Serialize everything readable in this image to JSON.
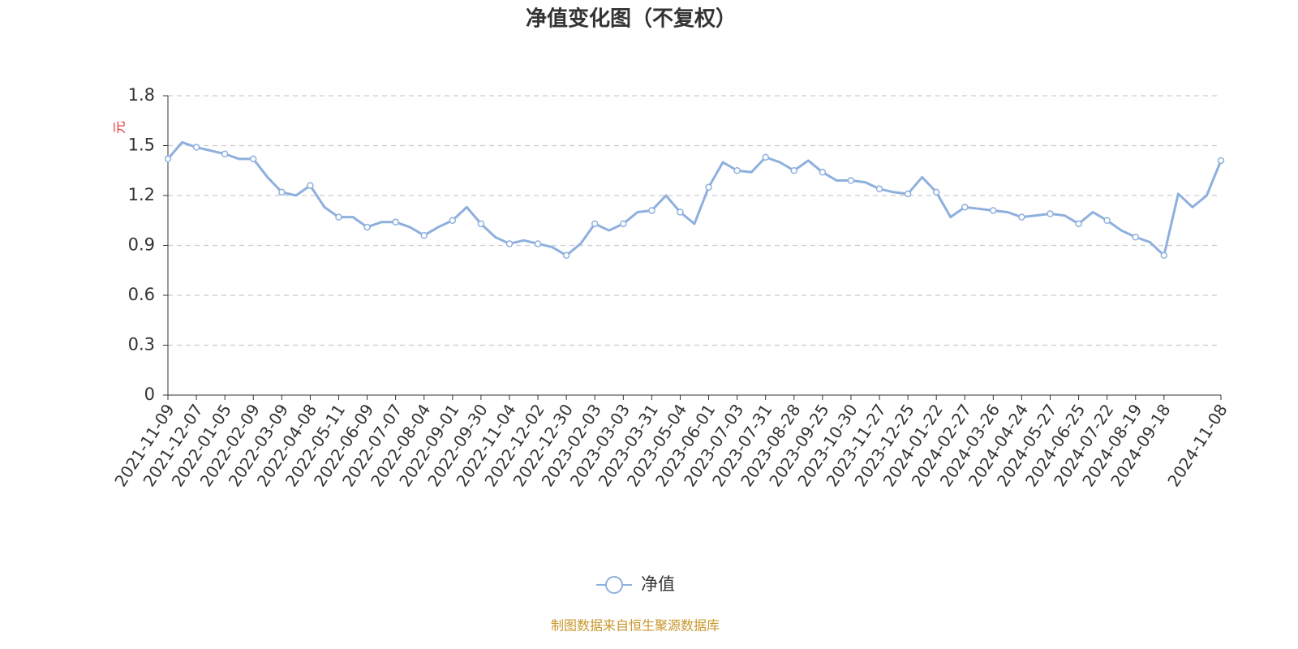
{
  "chart_data": {
    "type": "line",
    "title": "净值变化图（不复权）",
    "y_axis_label": "元",
    "categories": [
      "2021-11-09",
      null,
      "2021-12-07",
      null,
      "2022-01-05",
      null,
      "2022-02-09",
      null,
      "2022-03-09",
      null,
      "2022-04-08",
      null,
      "2022-05-11",
      null,
      "2022-06-09",
      null,
      "2022-07-07",
      null,
      "2022-08-04",
      null,
      "2022-09-01",
      null,
      "2022-09-30",
      null,
      "2022-11-04",
      null,
      "2022-12-02",
      null,
      "2022-12-30",
      null,
      "2023-02-03",
      null,
      "2023-03-03",
      null,
      "2023-03-31",
      null,
      "2023-05-04",
      null,
      "2023-06-01",
      null,
      "2023-07-03",
      null,
      "2023-07-31",
      null,
      "2023-08-28",
      null,
      "2023-09-25",
      null,
      "2023-10-30",
      null,
      "2023-11-27",
      null,
      "2023-12-25",
      null,
      "2024-01-22",
      null,
      "2024-02-27",
      null,
      "2024-03-26",
      null,
      "2024-04-24",
      null,
      "2024-05-27",
      null,
      "2024-06-25",
      null,
      "2024-07-22",
      null,
      "2024-08-19",
      null,
      "2024-09-18",
      null,
      null,
      null,
      "2024-11-08"
    ],
    "series": [
      {
        "name": "净值",
        "color": "#8eb0dd",
        "values": [
          1.42,
          1.52,
          1.49,
          1.47,
          1.45,
          1.42,
          1.42,
          1.31,
          1.22,
          1.2,
          1.26,
          1.13,
          1.07,
          1.07,
          1.01,
          1.04,
          1.04,
          1.01,
          0.96,
          1.01,
          1.05,
          1.13,
          1.03,
          0.95,
          0.91,
          0.93,
          0.91,
          0.89,
          0.84,
          0.91,
          1.03,
          0.99,
          1.03,
          1.1,
          1.11,
          1.2,
          1.1,
          1.03,
          1.25,
          1.4,
          1.35,
          1.34,
          1.43,
          1.4,
          1.35,
          1.41,
          1.34,
          1.29,
          1.29,
          1.28,
          1.24,
          1.22,
          1.21,
          1.31,
          1.22,
          1.07,
          1.13,
          1.12,
          1.11,
          1.1,
          1.07,
          1.08,
          1.09,
          1.08,
          1.03,
          1.1,
          1.05,
          0.99,
          0.95,
          0.92,
          0.84,
          1.21,
          1.13,
          1.2,
          1.41
        ]
      }
    ],
    "ylim": [
      0,
      1.8
    ],
    "yticks": [
      0,
      0.3,
      0.6,
      0.9,
      1.2,
      1.5,
      1.8
    ],
    "grid": true,
    "source": "制图数据来自恒生聚源数据库"
  }
}
